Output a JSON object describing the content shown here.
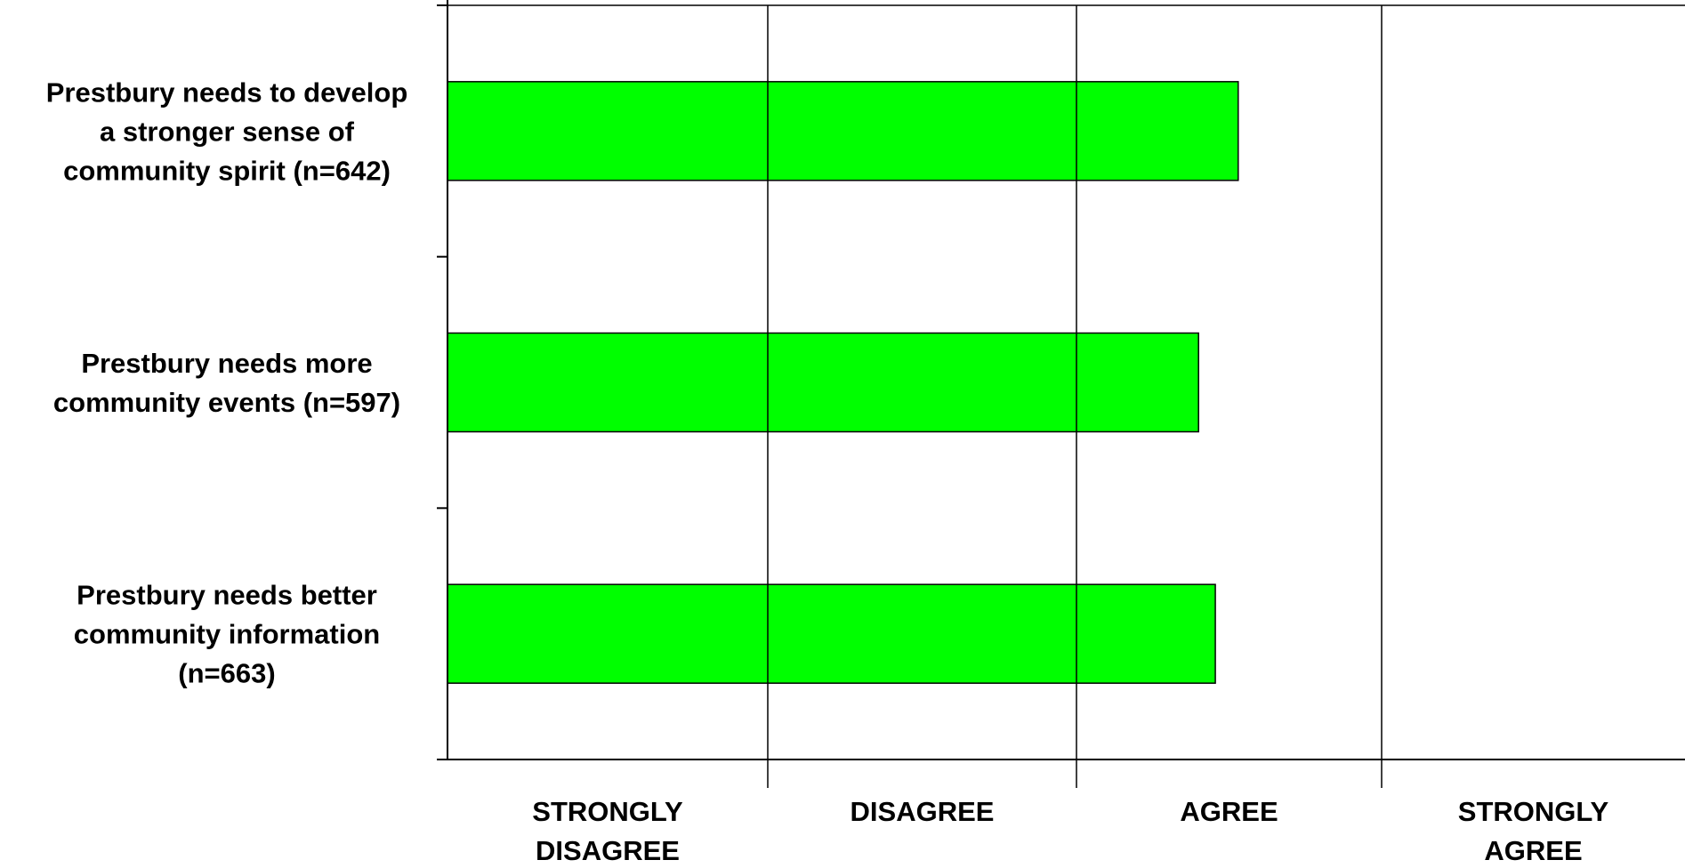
{
  "chart_data": {
    "type": "bar",
    "orientation": "horizontal",
    "categories": [
      [
        "Prestbury needs to develop",
        "a stronger sense of",
        "community spirit (n=642)"
      ],
      [
        "Prestbury needs more",
        "community events (n=597)"
      ],
      [
        "Prestbury needs better",
        "community information",
        "(n=663)"
      ]
    ],
    "values": [
      2.53,
      2.4,
      2.455
    ],
    "xlim": [
      0,
      4
    ],
    "xticks": [
      [
        "STRONGLY",
        "DISAGREE"
      ],
      [
        "DISAGREE"
      ],
      [
        "AGREE"
      ],
      [
        "STRONGLY",
        "AGREE"
      ]
    ],
    "grid": true,
    "title": "",
    "xlabel": "",
    "ylabel": "",
    "colors": {
      "bar_fill": "#00ff00",
      "bar_stroke": "#000000",
      "grid": "#000000"
    }
  }
}
